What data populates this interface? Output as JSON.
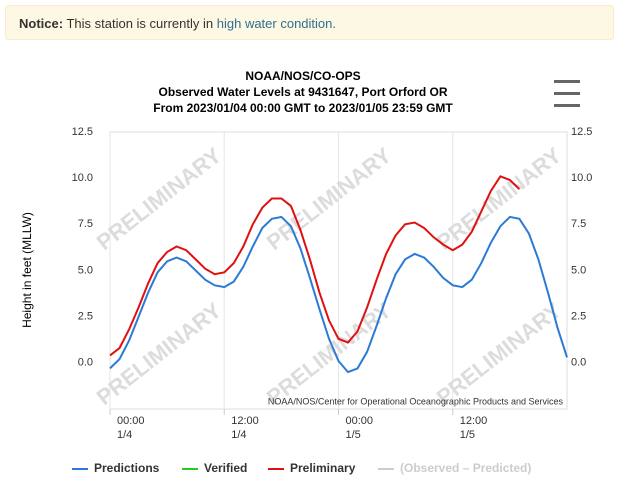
{
  "notice": {
    "label": "Notice:",
    "text": "This station is currently in",
    "link": "high water condition."
  },
  "chart_data": {
    "type": "line",
    "title": "NOAA/NOS/CO-OPS",
    "subtitle": "Observed Water Levels at 9431647, Port Orford OR",
    "date_range": "From 2023/01/04 00:00 GMT to 2023/01/05 23:59 GMT",
    "ylabel": "Height in feet (MLLW)",
    "watermark": "PRELIMINARY",
    "credits": "NOAA/NOS/Center for Operational Oceanographic Products and Services",
    "xlim": [
      0,
      48
    ],
    "xticks": [
      {
        "value": 0,
        "label": "00:00",
        "date": "1/4"
      },
      {
        "value": 12,
        "label": "12:00",
        "date": "1/4"
      },
      {
        "value": 24,
        "label": "00:00",
        "date": "1/5"
      },
      {
        "value": 36,
        "label": "12:00",
        "date": "1/5"
      }
    ],
    "ylim": [
      -2.5,
      12.5
    ],
    "yticks": [
      {
        "value": 0,
        "label": "0.0"
      },
      2.5,
      {
        "value": 5,
        "label": "5.0"
      },
      7.5,
      {
        "value": 10,
        "label": "10.0"
      },
      12.5
    ],
    "grid": "x",
    "series": [
      {
        "name": "Predictions",
        "color": "#2b7bd6",
        "x": [
          0,
          1,
          2,
          3,
          4,
          5,
          6,
          7,
          8,
          9,
          10,
          11,
          12,
          13,
          14,
          15,
          16,
          17,
          18,
          19,
          20,
          21,
          22,
          23,
          24,
          25,
          26,
          27,
          28,
          29,
          30,
          31,
          32,
          33,
          34,
          35,
          36,
          37,
          38,
          39,
          40,
          41,
          42,
          43,
          44,
          45,
          46,
          47,
          48
        ],
        "values": [
          -0.3,
          0.2,
          1.2,
          2.5,
          3.8,
          4.9,
          5.5,
          5.7,
          5.5,
          5.0,
          4.5,
          4.2,
          4.1,
          4.4,
          5.2,
          6.3,
          7.3,
          7.8,
          7.9,
          7.4,
          6.2,
          4.6,
          2.9,
          1.3,
          0.1,
          -0.5,
          -0.3,
          0.6,
          2.0,
          3.5,
          4.8,
          5.6,
          5.9,
          5.7,
          5.2,
          4.6,
          4.2,
          4.1,
          4.5,
          5.4,
          6.5,
          7.4,
          7.9,
          7.8,
          7.0,
          5.6,
          3.8,
          1.9,
          0.3
        ]
      },
      {
        "name": "Verified",
        "color": "#22cc22",
        "x": [],
        "values": []
      },
      {
        "name": "Preliminary",
        "color": "#e01010",
        "x": [
          0,
          1,
          2,
          3,
          4,
          5,
          6,
          7,
          8,
          9,
          10,
          11,
          12,
          13,
          14,
          15,
          16,
          17,
          18,
          19,
          20,
          21,
          22,
          23,
          24,
          25,
          26,
          27,
          28,
          29,
          30,
          31,
          32,
          33,
          34,
          35,
          36,
          37,
          38,
          39,
          40,
          41,
          42,
          43
        ],
        "values": [
          0.4,
          0.8,
          1.8,
          3.0,
          4.3,
          5.4,
          6.0,
          6.3,
          6.1,
          5.6,
          5.1,
          4.8,
          4.9,
          5.4,
          6.3,
          7.5,
          8.4,
          8.9,
          8.9,
          8.5,
          7.2,
          5.6,
          3.8,
          2.3,
          1.3,
          1.1,
          1.7,
          3.0,
          4.5,
          5.9,
          6.9,
          7.5,
          7.6,
          7.3,
          6.8,
          6.4,
          6.1,
          6.4,
          7.1,
          8.2,
          9.3,
          10.1,
          9.9,
          9.4
        ]
      },
      {
        "name": "(Observed – Predicted)",
        "color": "#cccccc",
        "x": [],
        "values": []
      }
    ]
  }
}
